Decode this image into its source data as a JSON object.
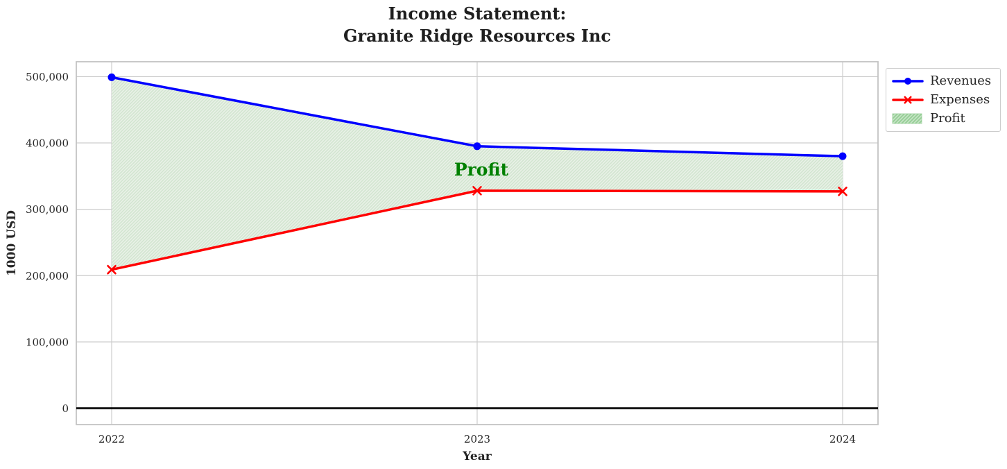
{
  "figure": {
    "background": "#ffffff",
    "text_color": "#262626",
    "grid_color": "#cdcdcd",
    "spine_color": "#c3c3c3"
  },
  "chart_data": {
    "type": "line",
    "title_line1": "Income Statement:",
    "title_line2": "Granite Ridge Resources Inc",
    "xlabel": "Year",
    "ylabel": "1000 USD",
    "categories": [
      "2022",
      "2023",
      "2024"
    ],
    "series": [
      {
        "name": "Revenues",
        "color": "#0000ff",
        "marker": "circle",
        "values": [
          499000,
          395000,
          380000
        ]
      },
      {
        "name": "Expenses",
        "color": "#ff0000",
        "marker": "x",
        "values": [
          209000,
          328000,
          327000
        ]
      }
    ],
    "profit_area": {
      "label": "Profit",
      "between": [
        "Revenues",
        "Expenses"
      ],
      "facecolor": "#e9f1e7",
      "hatchcolor": "#d2e5d0",
      "legend_facecolor": "#c5e3c5",
      "legend_hatchcolor": "#94ce94",
      "hatch": "//"
    },
    "annotation": {
      "text": "Profit",
      "x": "2023",
      "y": 360000,
      "color": "#008000"
    },
    "yticks": [
      0,
      100000,
      200000,
      300000,
      400000,
      500000
    ],
    "ytick_labels": [
      "0",
      "100,000",
      "200,000",
      "300,000",
      "400,000",
      "500,000"
    ],
    "ylim": [
      -24600,
      522400
    ],
    "grid": true,
    "zero_line": true,
    "zero_line_color": "#000000",
    "legend_entries": [
      "Revenues",
      "Expenses",
      "Profit"
    ],
    "legend_position": "upper-right-outside"
  }
}
